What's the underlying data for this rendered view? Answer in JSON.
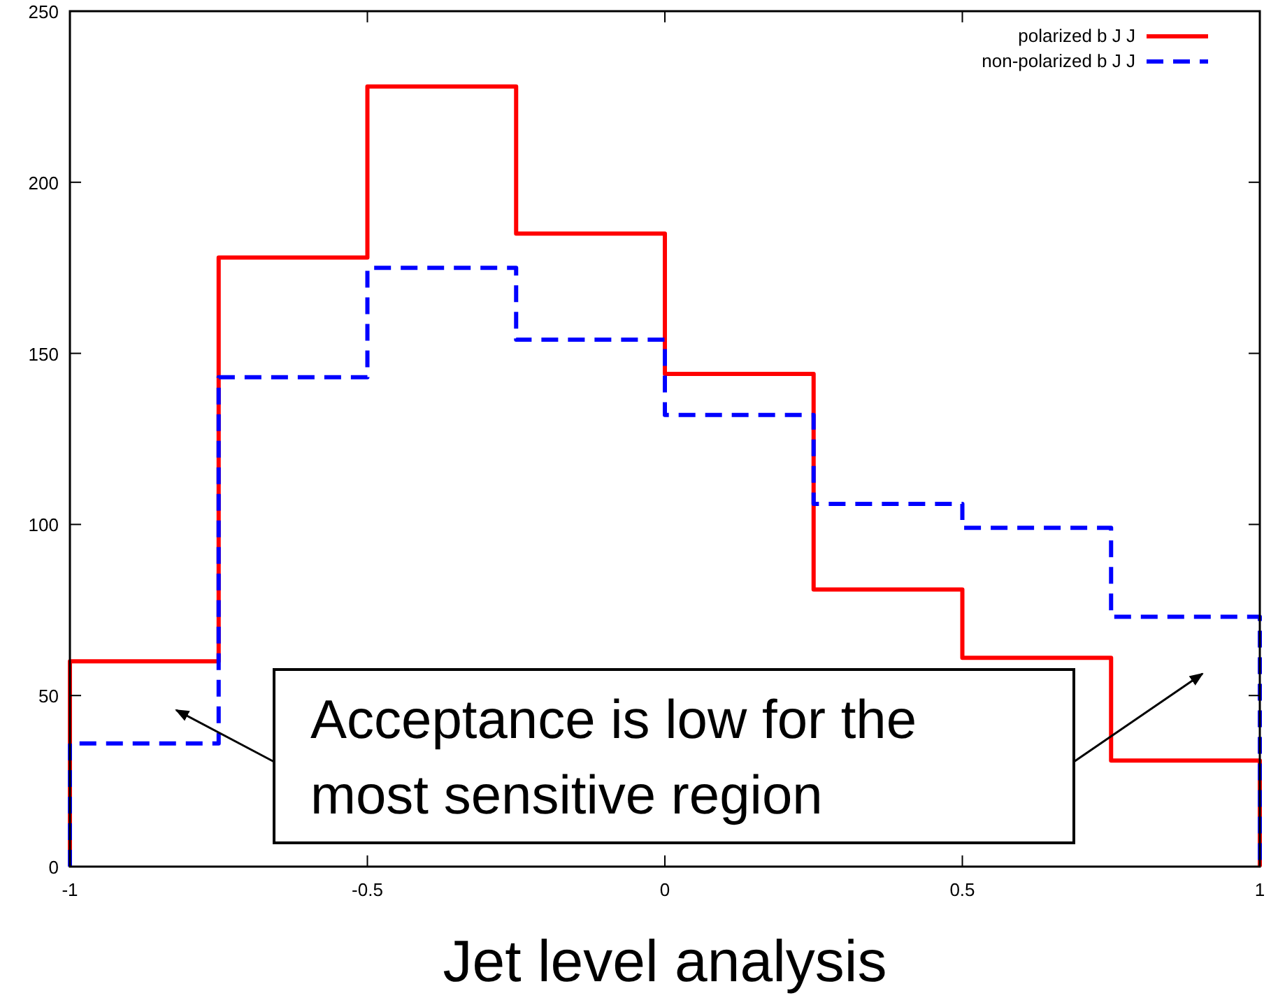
{
  "chart_data": {
    "type": "histogram",
    "xlabel": "Jet level analysis",
    "bins": [
      -1,
      -0.75,
      -0.5,
      -0.25,
      0,
      0.25,
      0.5,
      0.75,
      1
    ],
    "series": [
      {
        "name": "polarized b J J",
        "color": "#ff0000",
        "line_style": "solid",
        "values": [
          60,
          178,
          228,
          185,
          144,
          81,
          61,
          31
        ]
      },
      {
        "name": "non-polarized b J J",
        "color": "#0000ff",
        "line_style": "dashed",
        "values": [
          36,
          143,
          175,
          154,
          132,
          106,
          99,
          73
        ]
      }
    ],
    "xlim": [
      -1,
      1
    ],
    "xticks": [
      -1,
      -0.5,
      0,
      0.5,
      1
    ],
    "ylim": [
      0,
      250
    ],
    "yticks": [
      0,
      50,
      100,
      150,
      200,
      250
    ],
    "legend": "top right",
    "grid": false,
    "annotations": [
      "Acceptance is low for the most sensitive region"
    ]
  }
}
